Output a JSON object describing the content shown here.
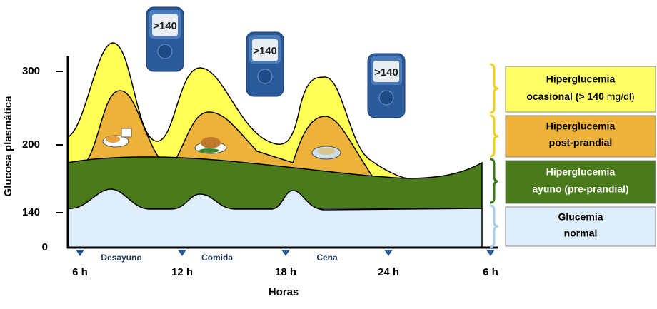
{
  "y_axis": {
    "title": "Glucosa plasmática",
    "ticks": [
      "300",
      "200",
      "140",
      "0"
    ]
  },
  "x_axis": {
    "title": "Horas",
    "ticks": [
      "6 h",
      "12 h",
      "18 h",
      "24 h",
      "6 h"
    ],
    "meals": [
      "Desayuno",
      "Comida",
      "Cena"
    ]
  },
  "meter_display": ">140",
  "legend": [
    {
      "line1": "Hiperglucemia",
      "line2": "ocasional (> 140",
      "line2_unit": "mg/dl)"
    },
    {
      "line1": "Hiperglucemia",
      "line2": "post-prandial"
    },
    {
      "line1": "Hiperglucemia",
      "line2": "ayuno (pre-prandial)"
    },
    {
      "line1": "Glucemia",
      "line2": "normal"
    }
  ]
}
